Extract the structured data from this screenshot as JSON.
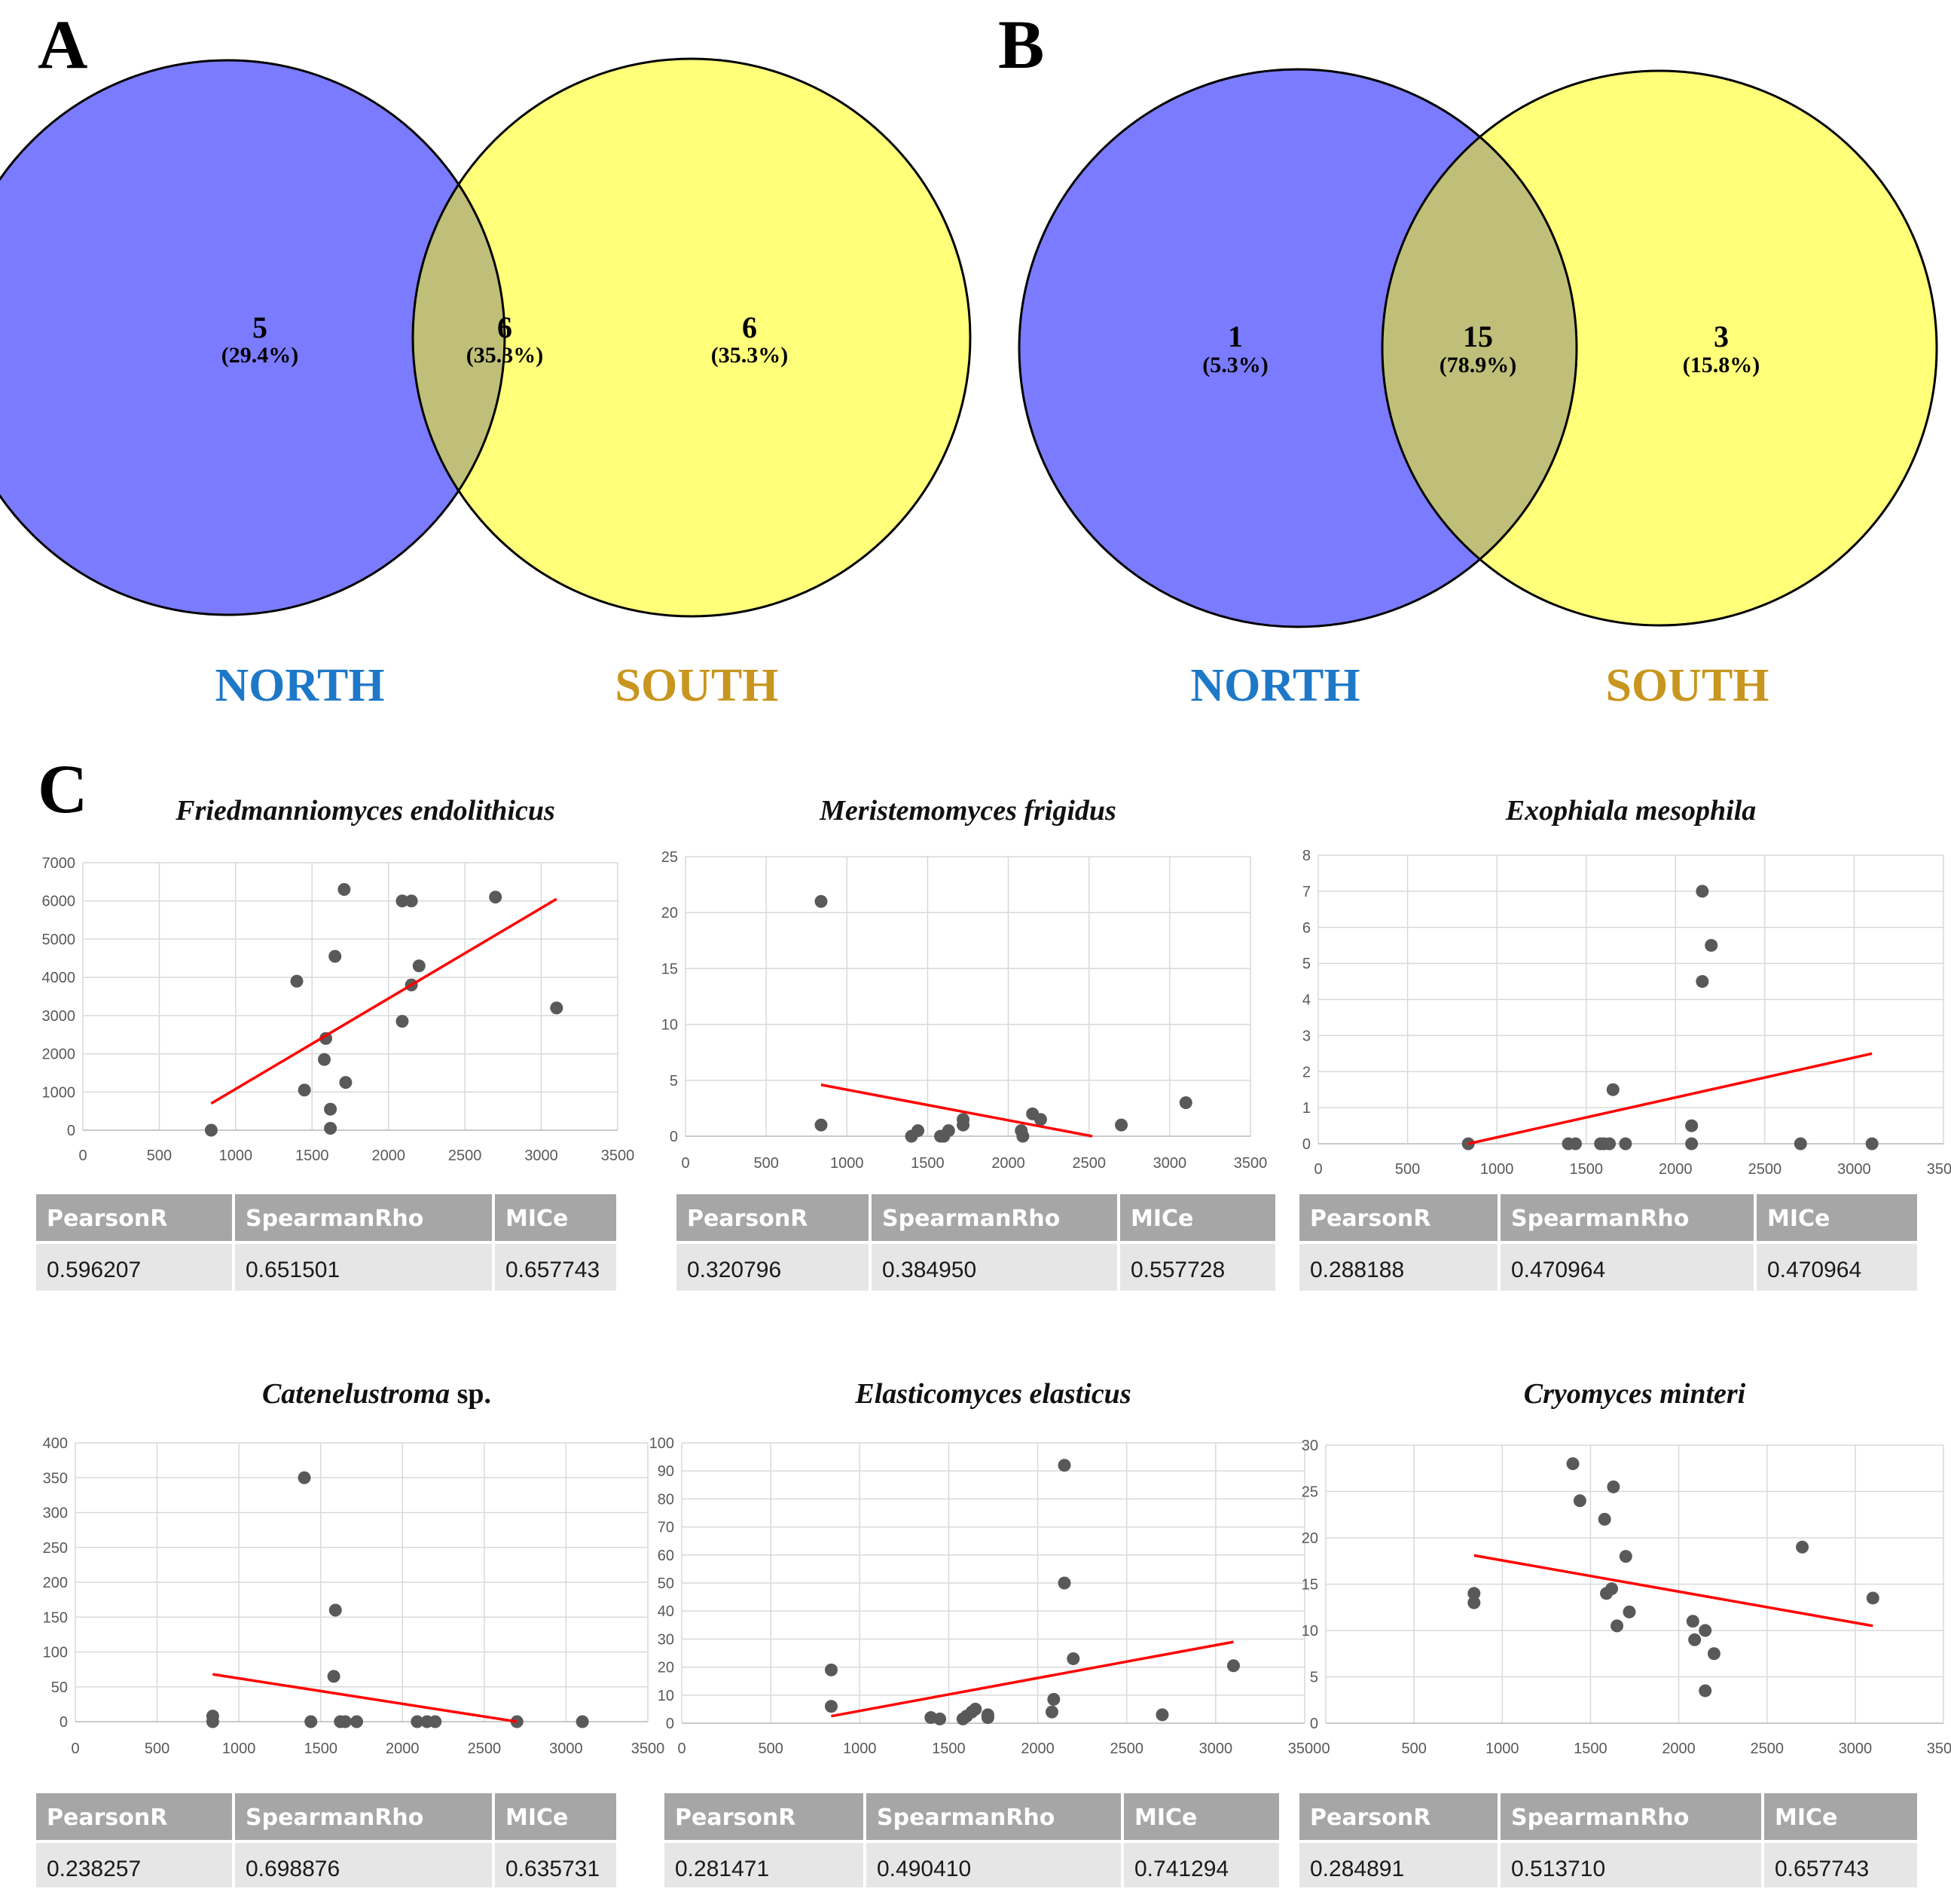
{
  "panels": {
    "a": "A",
    "b": "B",
    "c": "C"
  },
  "colors": {
    "north_circle": "#7b7bff",
    "south_circle": "#ffff7a",
    "overlap": "#bfbf79",
    "north_label": "#1e78c8",
    "south_label": "#c8961e",
    "trend": "#ff0000",
    "point": "#595959"
  },
  "venn": [
    {
      "panel": "A",
      "north": {
        "count": "5",
        "pct": "(29.4%)",
        "label": "NORTH"
      },
      "shared": {
        "count": "6",
        "pct": "(35.3%)"
      },
      "south": {
        "count": "6",
        "pct": "(35.3%)",
        "label": "SOUTH"
      }
    },
    {
      "panel": "B",
      "north": {
        "count": "1",
        "pct": "(5.3%)",
        "label": "NORTH"
      },
      "shared": {
        "count": "15",
        "pct": "(78.9%)"
      },
      "south": {
        "count": "3",
        "pct": "(15.8%)",
        "label": "SOUTH"
      }
    }
  ],
  "stat_headers": [
    "PearsonR",
    "SpearmanRho",
    "MICe"
  ],
  "chart_data": [
    {
      "type": "scatter",
      "title": "Friedmanniomyces endolithicus",
      "xlim": [
        0,
        3500
      ],
      "xticks": [
        0,
        500,
        1000,
        1500,
        2000,
        2500,
        3000,
        3500
      ],
      "ylim": [
        0,
        7000
      ],
      "yticks": [
        0,
        1000,
        2000,
        3000,
        4000,
        5000,
        6000,
        7000
      ],
      "points": [
        [
          840,
          0
        ],
        [
          1400,
          3900
        ],
        [
          1450,
          1050
        ],
        [
          1580,
          1850
        ],
        [
          1590,
          2400
        ],
        [
          1620,
          550
        ],
        [
          1620,
          50
        ],
        [
          1650,
          4550
        ],
        [
          1710,
          6300
        ],
        [
          1720,
          1250
        ],
        [
          2090,
          6000
        ],
        [
          2090,
          2850
        ],
        [
          2150,
          6000
        ],
        [
          2150,
          3800
        ],
        [
          2200,
          4300
        ],
        [
          2700,
          6100
        ],
        [
          3100,
          3200
        ]
      ],
      "trendline": [
        [
          840,
          700
        ],
        [
          3100,
          6050
        ]
      ],
      "stats": {
        "pearson": "0.596207",
        "spearman": "0.651501",
        "mice": "0.657743"
      }
    },
    {
      "type": "scatter",
      "title": "Meristemomyces frigidus",
      "xlim": [
        0,
        3500
      ],
      "xticks": [
        0,
        500,
        1000,
        1500,
        2000,
        2500,
        3000,
        3500
      ],
      "ylim": [
        0,
        25
      ],
      "yticks": [
        0,
        5,
        10,
        15,
        20,
        25
      ],
      "points": [
        [
          840,
          21
        ],
        [
          840,
          1
        ],
        [
          1400,
          0
        ],
        [
          1440,
          0.5
        ],
        [
          1580,
          0
        ],
        [
          1600,
          0
        ],
        [
          1630,
          0.5
        ],
        [
          1720,
          1
        ],
        [
          1720,
          1.5
        ],
        [
          2080,
          0.5
        ],
        [
          2090,
          0
        ],
        [
          2150,
          2
        ],
        [
          2200,
          1.5
        ],
        [
          2700,
          1
        ],
        [
          3100,
          3
        ]
      ],
      "trendline": [
        [
          840,
          4.6
        ],
        [
          2520,
          0
        ]
      ],
      "stats": {
        "pearson": "0.320796",
        "spearman": "0.384950",
        "mice": "0.557728"
      }
    },
    {
      "type": "scatter",
      "title": "Exophiala mesophila",
      "xlim": [
        0,
        3500
      ],
      "xticks": [
        0,
        500,
        1000,
        1500,
        2000,
        2500,
        3000,
        3500
      ],
      "ylim": [
        0,
        8
      ],
      "yticks": [
        0,
        1,
        2,
        3,
        4,
        5,
        6,
        7,
        8
      ],
      "points": [
        [
          840,
          0
        ],
        [
          1400,
          0
        ],
        [
          1440,
          0
        ],
        [
          1580,
          0
        ],
        [
          1600,
          0
        ],
        [
          1630,
          0
        ],
        [
          1650,
          1.5
        ],
        [
          1720,
          0
        ],
        [
          2090,
          0.5
        ],
        [
          2090,
          0
        ],
        [
          2150,
          7
        ],
        [
          2150,
          4.5
        ],
        [
          2200,
          5.5
        ],
        [
          2700,
          0
        ],
        [
          3100,
          0
        ]
      ],
      "trendline": [
        [
          840,
          0
        ],
        [
          3100,
          2.5
        ]
      ],
      "stats": {
        "pearson": "0.288188",
        "spearman": "0.470964",
        "mice": "0.470964"
      }
    },
    {
      "type": "scatter",
      "title": "Catenelustroma",
      "title_suffix": "sp.",
      "xlim": [
        0,
        3500
      ],
      "xticks": [
        0,
        500,
        1000,
        1500,
        2000,
        2500,
        3000,
        3500
      ],
      "ylim": [
        0,
        400
      ],
      "yticks": [
        0,
        50,
        100,
        150,
        200,
        250,
        300,
        350,
        400
      ],
      "points": [
        [
          840,
          8
        ],
        [
          840,
          0
        ],
        [
          1400,
          350
        ],
        [
          1440,
          0
        ],
        [
          1580,
          65
        ],
        [
          1590,
          160
        ],
        [
          1620,
          0
        ],
        [
          1650,
          0
        ],
        [
          1720,
          0
        ],
        [
          2090,
          0
        ],
        [
          2150,
          0
        ],
        [
          2200,
          0
        ],
        [
          2700,
          0
        ],
        [
          3100,
          0
        ]
      ],
      "trendline": [
        [
          840,
          68
        ],
        [
          2700,
          0
        ]
      ],
      "stats": {
        "pearson": "0.238257",
        "spearman": "0.698876",
        "mice": "0.635731"
      }
    },
    {
      "type": "scatter",
      "title": "Elasticomyces elasticus",
      "xlim": [
        0,
        3500
      ],
      "xticks": [
        0,
        500,
        1000,
        1500,
        2000,
        2500,
        3000,
        3500
      ],
      "ylim": [
        0,
        100
      ],
      "yticks": [
        0,
        10,
        20,
        30,
        40,
        50,
        60,
        70,
        80,
        90,
        100
      ],
      "points": [
        [
          840,
          19
        ],
        [
          840,
          6
        ],
        [
          1400,
          2
        ],
        [
          1450,
          1.5
        ],
        [
          1580,
          1.5
        ],
        [
          1600,
          2.5
        ],
        [
          1630,
          4
        ],
        [
          1650,
          5
        ],
        [
          1720,
          3
        ],
        [
          1720,
          2
        ],
        [
          2080,
          4
        ],
        [
          2090,
          8.5
        ],
        [
          2150,
          92
        ],
        [
          2150,
          50
        ],
        [
          2200,
          23
        ],
        [
          2700,
          3
        ],
        [
          3100,
          20.5
        ]
      ],
      "trendline": [
        [
          840,
          2.5
        ],
        [
          3100,
          29
        ]
      ],
      "stats": {
        "pearson": "0.281471",
        "spearman": "0.490410",
        "mice": "0.741294"
      }
    },
    {
      "type": "scatter",
      "title": "Cryomyces minteri",
      "xlim": [
        0,
        3500
      ],
      "xticks": [
        0,
        500,
        1000,
        1500,
        2000,
        2500,
        3000,
        3500
      ],
      "ylim": [
        0,
        30
      ],
      "yticks": [
        0,
        5,
        10,
        15,
        20,
        25,
        30
      ],
      "points": [
        [
          840,
          14
        ],
        [
          840,
          13
        ],
        [
          1400,
          28
        ],
        [
          1440,
          24
        ],
        [
          1580,
          22
        ],
        [
          1590,
          14
        ],
        [
          1620,
          14.5
        ],
        [
          1630,
          25.5
        ],
        [
          1650,
          10.5
        ],
        [
          1700,
          18
        ],
        [
          1720,
          12
        ],
        [
          2080,
          11
        ],
        [
          2090,
          9
        ],
        [
          2150,
          10
        ],
        [
          2150,
          3.5
        ],
        [
          2200,
          7.5
        ],
        [
          2700,
          19
        ],
        [
          3100,
          13.5
        ]
      ],
      "trendline": [
        [
          840,
          18.1
        ],
        [
          3100,
          10.5
        ]
      ],
      "stats": {
        "pearson": "0.284891",
        "spearman": "0.513710",
        "mice": "0.657743"
      }
    }
  ]
}
